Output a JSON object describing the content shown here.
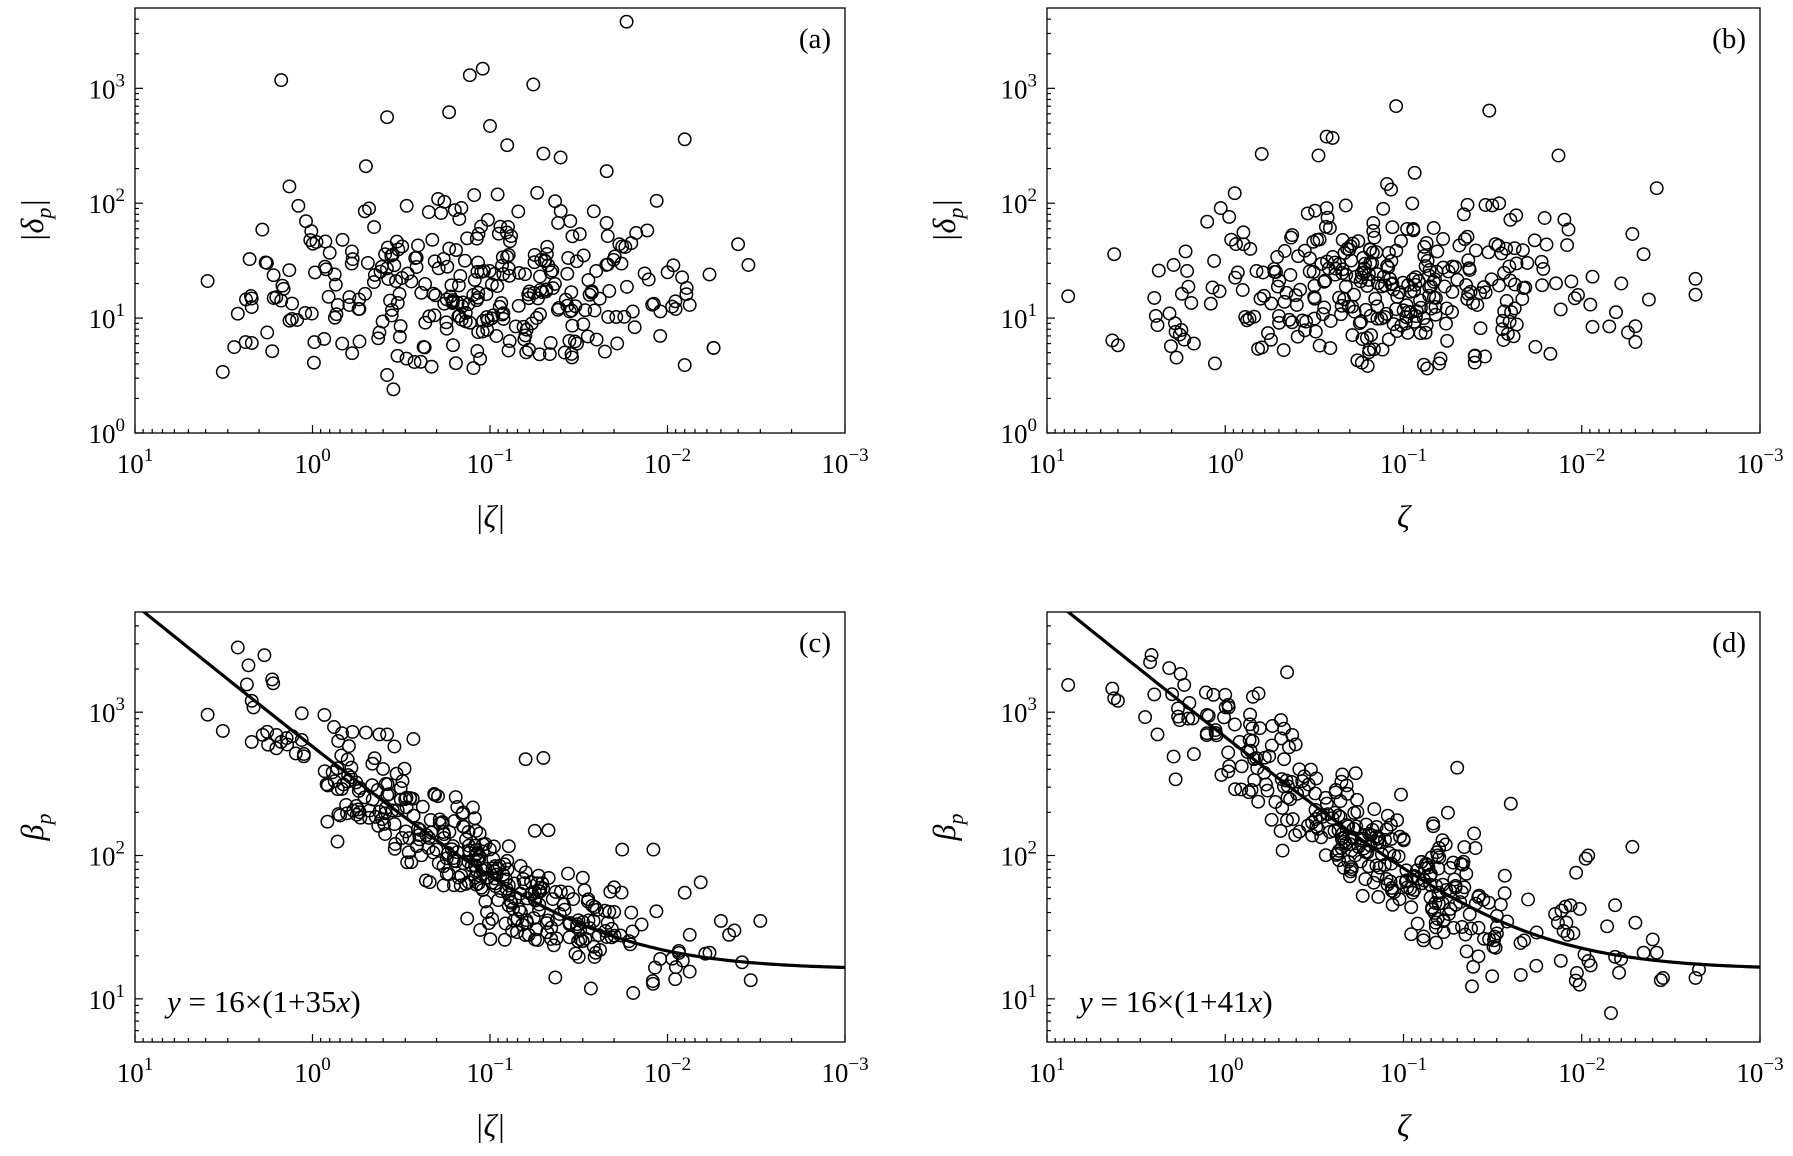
{
  "figure": {
    "colors": {
      "ink": "#000000",
      "background": "#ffffff"
    }
  },
  "chart_data": [
    {
      "id": "a",
      "type": "scatter",
      "panel_tag": "(a)",
      "xlabel": "|ζ|",
      "ylabel_base": "|δ",
      "ylabel_sub": "p",
      "ylabel_tail": "|",
      "xscale": "log",
      "yscale": "log",
      "xlim": [
        10,
        0.001
      ],
      "ylim": [
        1,
        5000
      ],
      "xticks": [
        {
          "exp": "1"
        },
        {
          "exp": "0"
        },
        {
          "exp": "−1"
        },
        {
          "exp": "−2"
        },
        {
          "exp": "−3"
        }
      ],
      "yticks": [
        {
          "exp": "0"
        },
        {
          "exp": "1"
        },
        {
          "exp": "2"
        },
        {
          "exp": "3"
        }
      ],
      "seed": 11,
      "n_generated": 290,
      "generator": "spread",
      "points": [
        [
          3.9,
          21
        ],
        [
          3.2,
          3.4
        ],
        [
          2.2,
          12.5
        ],
        [
          2.2,
          14.8
        ],
        [
          1.8,
          7.5
        ],
        [
          1.6,
          15.2
        ],
        [
          1.5,
          14.2
        ],
        [
          1.5,
          1180
        ],
        [
          1.35,
          140
        ],
        [
          1.2,
          95
        ],
        [
          0.95,
          46
        ],
        [
          0.85,
          28
        ],
        [
          0.8,
          37
        ],
        [
          0.75,
          24
        ],
        [
          0.72,
          13
        ],
        [
          0.68,
          6
        ],
        [
          0.62,
          13
        ],
        [
          0.6,
          38
        ],
        [
          0.55,
          12
        ],
        [
          0.5,
          210
        ],
        [
          0.48,
          90
        ],
        [
          0.45,
          62
        ],
        [
          0.42,
          7.5
        ],
        [
          0.38,
          560
        ],
        [
          0.38,
          3.2
        ],
        [
          0.35,
          2.4
        ],
        [
          0.17,
          620
        ],
        [
          0.13,
          1300
        ],
        [
          0.11,
          1480
        ],
        [
          0.1,
          470
        ],
        [
          0.08,
          320
        ],
        [
          0.057,
          1080
        ],
        [
          0.05,
          270
        ],
        [
          0.04,
          250
        ],
        [
          0.026,
          85
        ],
        [
          0.022,
          190
        ],
        [
          0.017,
          3800
        ],
        [
          0.0115,
          105
        ],
        [
          0.008,
          360
        ],
        [
          0.008,
          3.9
        ],
        [
          0.0075,
          13
        ],
        [
          0.0055,
          5.5
        ],
        [
          0.0058,
          24
        ],
        [
          0.0055,
          5.5
        ],
        [
          0.004,
          44
        ],
        [
          0.0035,
          29
        ],
        [
          0.009,
          12
        ],
        [
          0.011,
          7
        ],
        [
          0.015,
          55
        ],
        [
          0.013,
          58
        ],
        [
          0.018,
          42
        ],
        [
          0.016,
          45
        ]
      ]
    },
    {
      "id": "b",
      "type": "scatter",
      "panel_tag": "(b)",
      "xlabel": "ζ",
      "ylabel_base": "|δ",
      "ylabel_sub": "p",
      "ylabel_tail": "|",
      "xscale": "log",
      "yscale": "log",
      "xlim": [
        10,
        0.001
      ],
      "ylim": [
        1,
        5000
      ],
      "xticks": [
        {
          "exp": "1"
        },
        {
          "exp": "0"
        },
        {
          "exp": "−1"
        },
        {
          "exp": "−2"
        },
        {
          "exp": "−3"
        }
      ],
      "yticks": [
        {
          "exp": "0"
        },
        {
          "exp": "1"
        },
        {
          "exp": "2"
        },
        {
          "exp": "3"
        }
      ],
      "seed": 23,
      "n_generated": 330,
      "generator": "spread",
      "points": [
        [
          7.6,
          15.5
        ],
        [
          4.3,
          6.4
        ],
        [
          4.2,
          36
        ],
        [
          4.0,
          5.8
        ],
        [
          2.5,
          15
        ],
        [
          2.4,
          8.7
        ],
        [
          1.95,
          29
        ],
        [
          1.9,
          7.6
        ],
        [
          1.8,
          7.2
        ],
        [
          1.7,
          6.5
        ],
        [
          1.5,
          6.0
        ],
        [
          0.95,
          76
        ],
        [
          0.85,
          25
        ],
        [
          0.11,
          700
        ],
        [
          0.033,
          640
        ],
        [
          0.27,
          380
        ],
        [
          0.25,
          370
        ],
        [
          0.3,
          260
        ],
        [
          0.0135,
          260
        ],
        [
          0.0038,
          135
        ],
        [
          0.0023,
          22
        ],
        [
          0.0023,
          16
        ],
        [
          0.005,
          8.5
        ],
        [
          0.0045,
          36
        ],
        [
          0.0055,
          7.5
        ],
        [
          0.005,
          6.2
        ],
        [
          0.0052,
          54
        ],
        [
          0.006,
          20
        ],
        [
          0.0042,
          14.5
        ]
      ]
    },
    {
      "id": "c",
      "type": "scatter",
      "panel_tag": "(c)",
      "xlabel": "|ζ|",
      "ylabel_base": "β",
      "ylabel_sub": "p",
      "ylabel_tail": "",
      "formula": "y = 16×(1+35x)",
      "fit": {
        "a": 16,
        "b": 35
      },
      "xscale": "log",
      "yscale": "log",
      "xlim": [
        10,
        0.001
      ],
      "ylim": [
        5,
        5000
      ],
      "xticks": [
        {
          "exp": "1"
        },
        {
          "exp": "0"
        },
        {
          "exp": "−1"
        },
        {
          "exp": "−2"
        },
        {
          "exp": "−3"
        }
      ],
      "yticks": [
        {
          "exp": "1"
        },
        {
          "exp": "2"
        },
        {
          "exp": "3"
        }
      ],
      "seed": 37,
      "n_generated": 330,
      "generator": "fit",
      "a": 16,
      "b": 35,
      "scatter": 0.24,
      "points": [
        [
          3.9,
          960
        ],
        [
          3.2,
          740
        ],
        [
          2.2,
          1200
        ],
        [
          2.2,
          620
        ],
        [
          1.8,
          730
        ],
        [
          1.6,
          560
        ],
        [
          1.5,
          620
        ],
        [
          1.4,
          660
        ],
        [
          1.3,
          680
        ],
        [
          1.15,
          640
        ],
        [
          0.75,
          330
        ],
        [
          0.72,
          290
        ],
        [
          0.5,
          720
        ],
        [
          0.42,
          700
        ],
        [
          0.38,
          700
        ],
        [
          0.27,
          650
        ],
        [
          0.063,
          470
        ],
        [
          0.05,
          480
        ],
        [
          0.03,
          70
        ],
        [
          0.027,
          11.8
        ],
        [
          0.018,
          110
        ],
        [
          0.012,
          110
        ],
        [
          0.008,
          55
        ],
        [
          0.0075,
          28
        ],
        [
          0.0065,
          65
        ],
        [
          0.005,
          35
        ],
        [
          0.0045,
          28
        ],
        [
          0.0042,
          30
        ],
        [
          0.003,
          35
        ],
        [
          0.0038,
          18
        ],
        [
          0.0034,
          13.5
        ],
        [
          0.0075,
          15.5
        ],
        [
          0.0082,
          18.5
        ],
        [
          0.011,
          19
        ],
        [
          0.016,
          40
        ],
        [
          0.014,
          33
        ],
        [
          0.02,
          60
        ],
        [
          0.022,
          27
        ]
      ]
    },
    {
      "id": "d",
      "type": "scatter",
      "panel_tag": "(d)",
      "xlabel": "ζ",
      "ylabel_base": "β",
      "ylabel_sub": "p",
      "ylabel_tail": "",
      "formula": "y = 16×(1+41x)",
      "fit": {
        "a": 16,
        "b": 41
      },
      "xscale": "log",
      "yscale": "log",
      "xlim": [
        10,
        0.001
      ],
      "ylim": [
        5,
        5000
      ],
      "xticks": [
        {
          "exp": "1"
        },
        {
          "exp": "0"
        },
        {
          "exp": "−1"
        },
        {
          "exp": "−2"
        },
        {
          "exp": "−3"
        }
      ],
      "yticks": [
        {
          "exp": "1"
        },
        {
          "exp": "2"
        },
        {
          "exp": "3"
        }
      ],
      "seed": 51,
      "n_generated": 330,
      "generator": "fit",
      "a": 16,
      "b": 41,
      "scatter": 0.27,
      "points": [
        [
          7.6,
          1550
        ],
        [
          4.3,
          1460
        ],
        [
          4.2,
          1250
        ],
        [
          4.0,
          1200
        ],
        [
          2.5,
          1330
        ],
        [
          2.4,
          700
        ],
        [
          1.95,
          490
        ],
        [
          1.9,
          340
        ],
        [
          1.7,
          1550
        ],
        [
          1.5,
          510
        ],
        [
          1.8,
          880
        ],
        [
          0.95,
          420
        ],
        [
          0.88,
          290
        ],
        [
          0.45,
          1900
        ],
        [
          0.65,
          1350
        ],
        [
          0.7,
          1280
        ],
        [
          0.05,
          410
        ],
        [
          0.025,
          230
        ],
        [
          0.012,
          28
        ],
        [
          0.0095,
          95
        ],
        [
          0.0092,
          100
        ],
        [
          0.0052,
          115
        ],
        [
          0.005,
          34
        ],
        [
          0.004,
          26
        ],
        [
          0.0038,
          21
        ],
        [
          0.0035,
          14
        ],
        [
          0.0036,
          13.5
        ],
        [
          0.0022,
          16
        ],
        [
          0.0023,
          14
        ],
        [
          0.0045,
          21
        ],
        [
          0.0065,
          45
        ]
      ]
    }
  ]
}
